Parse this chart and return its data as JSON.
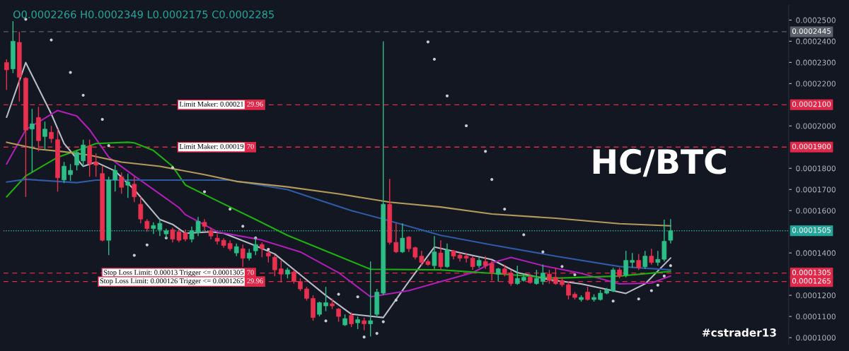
{
  "chart_data": {
    "type": "candlestick",
    "title": "HC/BTC",
    "annotations": [
      "O0.0002266 H0.0002349 L0.0002175 C0.0002285",
      "#cstrader13",
      {
        "text": "Limit Maker: 0.00021",
        "y": 0.00021
      },
      {
        "text": "29.96",
        "y": 0.00021
      },
      {
        "text": "Limit Maker: 0.00019",
        "y": 0.00019
      },
      {
        "text": "70",
        "y": 0.00019
      },
      {
        "text": "Stop Loss Limit: 0.00013 Trigger <= 0.0001305",
        "y": 0.0001305
      },
      {
        "text": "70",
        "y": 0.0001305
      },
      {
        "text": "Stop Loss Limit: 0.000126 Trigger <= 0.0001265",
        "y": 0.0001265
      },
      {
        "text": "29.96",
        "y": 0.0001265
      }
    ],
    "categories": [
      null,
      null,
      null,
      null,
      null,
      null,
      null,
      null,
      null,
      null,
      null,
      null,
      null,
      null,
      null,
      null,
      null,
      null,
      null,
      null,
      null,
      null,
      null,
      null,
      null,
      null,
      null,
      null,
      null,
      null,
      null,
      null,
      null,
      null,
      null,
      null,
      null,
      null,
      null,
      null,
      null,
      null,
      null,
      null,
      null,
      null,
      null,
      null,
      null,
      null,
      null,
      null,
      null,
      null,
      null,
      null,
      null,
      null,
      null,
      null,
      null,
      null,
      null,
      null,
      null,
      null,
      null,
      null,
      null,
      null,
      null,
      null,
      null,
      null,
      null,
      null,
      null,
      null,
      null,
      null,
      null,
      null,
      null,
      null,
      null,
      null,
      null,
      null,
      null,
      null,
      null,
      null,
      null,
      null,
      null,
      null,
      null,
      null,
      null,
      null,
      null,
      null,
      null,
      null,
      null,
      null,
      null,
      null,
      null,
      null,
      null,
      null,
      null,
      null,
      null,
      null,
      null,
      null,
      null,
      null,
      null,
      null,
      null
    ],
    "ohlc": [
      [
        0.00023,
        0.0002315,
        0.000217,
        0.0002265
      ],
      [
        0.000227,
        0.0002495,
        0.000225,
        0.00024
      ],
      [
        0.0002395,
        0.0002445,
        0.0002115,
        0.000223
      ],
      [
        0.0002225,
        0.000223,
        0.0001665,
        0.000198
      ],
      [
        0.0001985,
        0.000208,
        0.000178,
        0.000201
      ],
      [
        0.000204,
        0.000209,
        0.000188,
        0.000193
      ],
      [
        0.000195,
        0.000202,
        0.000189,
        0.0001985
      ],
      [
        0.000197,
        0.0002,
        0.000192,
        0.000194
      ],
      [
        0.0001935,
        0.0001985,
        0.000169,
        0.0001755
      ],
      [
        0.0001745,
        0.000183,
        0.000173,
        0.000181
      ],
      [
        0.000177,
        0.000182,
        0.000174,
        0.000179
      ],
      [
        0.0001815,
        0.0001885,
        0.000179,
        0.0001875
      ],
      [
        0.0001835,
        0.0001935,
        0.000181,
        0.000191
      ],
      [
        0.0001905,
        0.0001935,
        0.000176,
        0.000182
      ],
      [
        0.000183,
        0.000187,
        0.000176,
        0.0001815
      ],
      [
        0.0001775,
        0.000181,
        0.0001455,
        0.000146
      ],
      [
        0.000146,
        0.000176,
        0.000139,
        0.0001745
      ],
      [
        0.0001745,
        0.0001815,
        0.000169,
        0.000179
      ],
      [
        0.000176,
        0.000178,
        0.000168,
        0.000171
      ],
      [
        0.000172,
        0.0001775,
        0.000166,
        0.0001735
      ],
      [
        0.0001725,
        0.000176,
        0.000164,
        0.0001665
      ],
      [
        0.000163,
        0.0001665,
        0.000154,
        0.000156
      ],
      [
        0.000155,
        0.000156,
        0.00015,
        0.0001515
      ],
      [
        0.0001515,
        0.0001545,
        0.000149,
        0.000153
      ],
      [
        0.000151,
        0.000156,
        0.000148,
        0.000154
      ],
      [
        0.000149,
        0.0001515,
        0.000147,
        0.0001505
      ],
      [
        0.000151,
        0.000152,
        0.000145,
        0.0001465
      ],
      [
        0.00015,
        0.000151,
        0.000145,
        0.000146
      ],
      [
        0.0001495,
        0.000151,
        0.0001455,
        0.0001465
      ],
      [
        0.0001465,
        0.0001525,
        0.000145,
        0.0001505
      ],
      [
        0.0001495,
        0.000157,
        0.000148,
        0.000155
      ],
      [
        0.0001545,
        0.000156,
        0.0001505,
        0.0001525
      ],
      [
        0.0001505,
        0.000152,
        0.0001465,
        0.000148
      ],
      [
        0.000147,
        0.000149,
        0.000144,
        0.0001455
      ],
      [
        0.000146,
        0.000147,
        0.0001425,
        0.0001435
      ],
      [
        0.0001445,
        0.000146,
        0.000141,
        0.000142
      ],
      [
        0.00014,
        0.0001445,
        0.0001385,
        0.000143
      ],
      [
        0.000142,
        0.000144,
        0.0001335,
        0.0001375
      ],
      [
        0.0001375,
        0.000142,
        0.0001365,
        0.00014
      ],
      [
        0.000141,
        0.0001472,
        0.000139,
        0.000144
      ],
      [
        0.000144,
        0.000145,
        0.000138,
        0.000142
      ],
      [
        0.00014,
        0.000141,
        0.0001355,
        0.0001385
      ],
      [
        0.000138,
        0.000139,
        0.000129,
        0.000132
      ],
      [
        0.0001325,
        0.0001365,
        0.000126,
        0.00013
      ],
      [
        0.00013,
        0.000133,
        0.000128,
        0.000132
      ],
      [
        0.000131,
        0.000132,
        0.0001255,
        0.0001265
      ],
      [
        0.0001265,
        0.000128,
        0.000122,
        0.000123
      ],
      [
        0.000123,
        0.000124,
        0.0001175,
        0.0001185
      ],
      [
        0.0001185,
        0.00012,
        0.000108,
        0.0001095
      ],
      [
        0.000111,
        0.000117,
        0.00011,
        0.0001165
      ],
      [
        0.000115,
        0.000124,
        0.0001125,
        0.0001165
      ],
      [
        0.000116,
        0.0001185,
        0.0001135,
        0.000115
      ],
      [
        0.0001135,
        0.000114,
        0.0001075,
        0.00011
      ],
      [
        0.000106,
        0.000111,
        0.0001055,
        0.000109
      ],
      [
        0.0001105,
        0.000112,
        0.000105,
        0.0001065
      ],
      [
        0.000107,
        0.00011,
        0.000104,
        0.0001085
      ],
      [
        0.000108,
        0.0001095,
        0.0001035,
        0.0001065
      ],
      [
        0.0001065,
        0.000136,
        0.0001005,
        0.000108
      ],
      [
        0.000111,
        0.000123,
        0.0001095,
        0.0001215
      ],
      [
        0.000121,
        0.00024,
        0.00012,
        0.000163
      ],
      [
        0.000163,
        0.000175,
        0.000144,
        0.000145
      ],
      [
        0.000145,
        0.000154,
        0.00014,
        0.0001405
      ],
      [
        0.0001405,
        0.000154,
        0.00014,
        0.000147
      ],
      [
        0.0001475,
        0.000148,
        0.0001405,
        0.000142
      ],
      [
        0.0001425,
        0.000143,
        0.000137,
        0.000138
      ],
      [
        0.0001385,
        0.000141,
        0.000134,
        0.0001355
      ],
      [
        0.000136,
        0.000137,
        0.000134,
        0.0001345
      ],
      [
        0.000134,
        0.000148,
        0.0001325,
        0.0001405
      ],
      [
        0.00014,
        0.000146,
        0.000132,
        0.0001335
      ],
      [
        0.0001335,
        0.0001445,
        0.000133,
        0.0001415
      ],
      [
        0.000141,
        0.0001415,
        0.000137,
        0.0001385
      ],
      [
        0.000139,
        0.00014,
        0.000136,
        0.0001375
      ],
      [
        0.0001385,
        0.00014,
        0.0001355,
        0.0001375
      ],
      [
        0.0001375,
        0.0001385,
        0.000132,
        0.0001335
      ],
      [
        0.000134,
        0.000138,
        0.000133,
        0.0001365
      ],
      [
        0.000136,
        0.0001385,
        0.0001325,
        0.000134
      ],
      [
        0.000135,
        0.0001365,
        0.000127,
        0.0001305
      ],
      [
        0.00013,
        0.000133,
        0.0001265,
        0.0001325
      ],
      [
        0.0001325,
        0.0001345,
        0.000129,
        0.00013
      ],
      [
        0.0001305,
        0.000132,
        0.0001245,
        0.0001255
      ],
      [
        0.0001255,
        0.000134,
        0.000125,
        0.000128
      ],
      [
        0.000127,
        0.00013,
        0.0001265,
        0.0001285
      ],
      [
        0.0001285,
        0.00013,
        0.0001255,
        0.000126
      ],
      [
        0.0001255,
        0.000132,
        0.000125,
        0.000128
      ],
      [
        0.0001265,
        0.0001345,
        0.000125,
        0.0001305
      ],
      [
        0.00013,
        0.000132,
        0.0001255,
        0.000127
      ],
      [
        0.0001285,
        0.000133,
        0.000125,
        0.0001255
      ],
      [
        0.000127,
        0.0001285,
        0.000124,
        0.000125
      ],
      [
        0.000125,
        0.0001265,
        0.000118,
        0.00012
      ],
      [
        0.0001205,
        0.0001215,
        0.000118,
        0.000119
      ],
      [
        0.000118,
        0.00012,
        0.000117,
        0.000119
      ],
      [
        0.0001215,
        0.000124,
        0.0001175,
        0.000118
      ],
      [
        0.000118,
        0.0001205,
        0.000117,
        0.000119
      ],
      [
        0.000118,
        0.0001225,
        0.0001175,
        0.000121
      ],
      [
        0.000121,
        0.0001235,
        0.0001205,
        0.0001225
      ],
      [
        0.000122,
        0.000133,
        0.0001215,
        0.000132
      ],
      [
        0.000132,
        0.000133,
        0.000128,
        0.000129
      ],
      [
        0.0001295,
        0.000141,
        0.0001285,
        0.0001365
      ],
      [
        0.0001355,
        0.00014,
        0.000133,
        0.0001365
      ],
      [
        0.0001365,
        0.0001395,
        0.000132,
        0.000133
      ],
      [
        0.0001335,
        0.000141,
        0.0001325,
        0.0001385
      ],
      [
        0.0001385,
        0.000142,
        0.0001345,
        0.0001355
      ],
      [
        0.0001355,
        0.000141,
        0.000134,
        0.000137
      ],
      [
        0.000137,
        0.0001557,
        0.000136,
        0.0001455
      ],
      [
        0.000146,
        0.000156,
        0.0001445,
        0.0001505
      ],
      null,
      null,
      null,
      null,
      null,
      null,
      null,
      null,
      null,
      null,
      null,
      null,
      null,
      null,
      null,
      null,
      null,
      null
    ],
    "colors": [
      "#e8304f",
      "#2dbd86",
      "#e8304f",
      "#e8304f",
      "#2dbd86",
      "#e8304f",
      "#2dbd86",
      "#e8304f",
      "#e8304f",
      "#2dbd86",
      "#2dbd86",
      "#2dbd86",
      "#2dbd86",
      "#e8304f",
      "#e8304f",
      "#e8304f",
      "#2dbd86",
      "#2dbd86",
      "#e8304f",
      "#2dbd86",
      "#e8304f",
      "#e8304f",
      "#e8304f",
      "#2dbd86",
      "#2dbd86",
      "#2dbd86",
      "#e8304f",
      "#e8304f",
      "#e8304f",
      "#2dbd86",
      "#2dbd86",
      "#e8304f",
      "#e8304f",
      "#e8304f",
      "#e8304f",
      "#e8304f",
      "#2dbd86",
      "#e8304f",
      "#2dbd86",
      "#2dbd86",
      "#e8304f",
      "#e8304f",
      "#e8304f",
      "#e8304f",
      "#2dbd86",
      "#e8304f",
      "#e8304f",
      "#e8304f",
      "#e8304f",
      "#2dbd86",
      "#2dbd86",
      "#e8304f",
      "#e8304f",
      "#2dbd86",
      "#e8304f",
      "#2dbd86",
      "#e8304f",
      "#2dbd86",
      "#2dbd86",
      "#2dbd86",
      "#e8304f",
      "#e8304f",
      "#2dbd86",
      "#e8304f",
      "#e8304f",
      "#e8304f",
      "#e8304f",
      "#2dbd86",
      "#e8304f",
      "#2dbd86",
      "#e8304f",
      "#e8304f",
      "#e8304f",
      "#e8304f",
      "#2dbd86",
      "#e8304f",
      "#e8304f",
      "#2dbd86",
      "#e8304f",
      "#e8304f",
      "#2dbd86",
      "#2dbd86",
      "#e8304f",
      "#2dbd86",
      "#2dbd86",
      "#e8304f",
      "#e8304f",
      "#e8304f",
      "#e8304f",
      "#e8304f",
      "#2dbd86",
      "#e8304f",
      "#2dbd86",
      "#2dbd86",
      "#2dbd86",
      "#2dbd86",
      "#e8304f",
      "#2dbd86",
      "#2dbd86",
      "#e8304f",
      "#2dbd86",
      "#e8304f",
      "#2dbd86",
      "#2dbd86",
      "#2dbd86",
      null,
      null,
      null,
      null,
      null,
      null,
      null,
      null,
      null,
      null,
      null,
      null,
      null,
      null,
      null,
      null,
      null,
      null
    ],
    "series": [
      {
        "type": "line",
        "color": "#b8bcc6",
        "values": [
          0.0002041,
          null,
          null,
          0.0002299,
          null,
          null,
          null,
          0.0002057,
          null,
          0.0001917,
          null,
          0.0001845,
          0.0001809,
          null,
          0.0001829,
          null,
          null,
          0.0001787,
          null,
          null,
          0.0001699,
          null,
          null,
          null,
          0.0001558,
          null,
          0.0001535,
          null,
          0.0001493,
          null,
          null,
          null,
          0.00015,
          null,
          0.0001493,
          null,
          null,
          null,
          null,
          0.0001434,
          null,
          null,
          0.0001395,
          null,
          null,
          null,
          0.0001297,
          null,
          null,
          null,
          0.0001199,
          null,
          null,
          null,
          0.0001111,
          null,
          null,
          0.0001101,
          null,
          0.0001095,
          null,
          null,
          null,
          0.0001265,
          null,
          null,
          null,
          0.0001428,
          null,
          null,
          null,
          null,
          0.0001395,
          null,
          null,
          null,
          0.0001369,
          null,
          null,
          null,
          0.0001307,
          null,
          null,
          null,
          null,
          0.0001274,
          null,
          null,
          null,
          null,
          0.0001254,
          null,
          null,
          null,
          null,
          null,
          null,
          0.0001209,
          null,
          null,
          0.0001254,
          null,
          null,
          null,
          0.0001376,
          null,
          null,
          null,
          null,
          null,
          null,
          null,
          null,
          null,
          null,
          null,
          null,
          null,
          null,
          null,
          null,
          null,
          null
        ]
      },
      {
        "type": "line",
        "color": "#b01eb5",
        "values": [
          0.000182,
          null,
          null,
          0.0001982,
          null,
          null,
          null,
          null,
          0.0002073,
          null,
          null,
          0.0002047,
          null,
          0.0001982,
          null,
          null,
          0.0001852,
          null,
          null,
          null,
          0.0001764,
          null,
          null,
          null,
          0.0001679,
          null,
          null,
          0.0001614,
          0.0001581,
          null,
          null,
          null,
          null,
          0.00015,
          null,
          null,
          null,
          null,
          null,
          null,
          0.0001461,
          null,
          null,
          null,
          null,
          null,
          0.0001405,
          null,
          null,
          null,
          null,
          null,
          0.0001307,
          null,
          null,
          null,
          null,
          0.0001193,
          null,
          null,
          null,
          null,
          null,
          0.0001222,
          null,
          null,
          null,
          null,
          0.0001265,
          null,
          null,
          null,
          null,
          0.0001307,
          null,
          null,
          0.0001353,
          null,
          null,
          0.0001379,
          null,
          null,
          null,
          null,
          0.000134,
          null,
          null,
          null,
          null,
          null,
          0.0001304,
          null,
          null,
          null,
          null,
          null,
          0.0001254,
          null,
          null,
          null,
          null,
          0.0001258,
          null,
          null,
          0.0001291,
          null,
          null,
          null,
          null,
          null,
          null,
          null,
          null,
          null,
          null,
          null,
          null,
          null,
          null,
          null,
          null,
          null,
          null
        ]
      },
      {
        "type": "line",
        "color": "#1fae10",
        "values": [
          0.0001665,
          null,
          null,
          0.0001764,
          null,
          null,
          null,
          null,
          0.0001852,
          null,
          null,
          null,
          0.0001894,
          null,
          0.0001917,
          null,
          null,
          null,
          null,
          0.0001923,
          0.000192,
          null,
          null,
          0.0001884,
          null,
          null,
          0.0001809,
          null,
          0.0001721,
          null,
          null,
          null,
          null,
          0.0001646,
          null,
          null,
          null,
          null,
          null,
          0.0001558,
          null,
          null,
          null,
          null,
          0.0001483,
          null,
          null,
          null,
          null,
          null,
          null,
          null,
          0.0001385,
          null,
          null,
          null,
          null,
          0.0001323,
          null,
          null,
          null,
          null,
          null,
          null,
          null,
          null,
          null,
          null,
          0.000132,
          null,
          null,
          null,
          null,
          null,
          null,
          null,
          0.0001304,
          null,
          null,
          null,
          null,
          null,
          null,
          null,
          null,
          null,
          0.0001281,
          null,
          null,
          null,
          null,
          null,
          null,
          null,
          null,
          null,
          0.0001291,
          null,
          null,
          null,
          null,
          null,
          null,
          null,
          0.0001313,
          null,
          null,
          null,
          null,
          null,
          null,
          null,
          null,
          null,
          null,
          null,
          null,
          null,
          null,
          null,
          null,
          null,
          null
        ]
      },
      {
        "type": "line",
        "color": "#2e5aa6",
        "values": [
          0.0001735,
          null,
          null,
          0.0001748,
          null,
          null,
          null,
          null,
          null,
          null,
          null,
          0.0001732,
          null,
          null,
          0.0001744,
          null,
          null,
          null,
          null,
          null,
          null,
          null,
          null,
          null,
          null,
          null,
          0.0001744,
          null,
          null,
          null,
          null,
          null,
          null,
          null,
          null,
          0.0001744,
          null,
          null,
          null,
          null,
          null,
          null,
          null,
          null,
          0.0001699,
          null,
          null,
          null,
          null,
          null,
          null,
          null,
          null,
          null,
          0.00016,
          null,
          null,
          null,
          null,
          0.000156,
          null,
          null,
          null,
          null,
          null,
          null,
          null,
          null,
          0.0001483,
          null,
          null,
          null,
          null,
          null,
          null,
          null,
          0.0001438,
          null,
          null,
          null,
          null,
          null,
          null,
          null,
          null,
          null,
          0.0001385,
          null,
          null,
          null,
          null,
          null,
          null,
          null,
          null,
          null,
          0.0001336,
          null,
          null,
          null,
          null,
          null,
          null,
          null,
          0.000132,
          null,
          null,
          null,
          null,
          null,
          null,
          null,
          null,
          null,
          null,
          null,
          null,
          null,
          null,
          null,
          null,
          null,
          null
        ]
      },
      {
        "type": "line",
        "color": "#b39a5a",
        "values": [
          0.0001923,
          null,
          null,
          null,
          null,
          0.000189,
          null,
          null,
          null,
          0.0001878,
          null,
          null,
          null,
          0.0001862,
          null,
          null,
          null,
          null,
          0.0001829,
          null,
          null,
          null,
          null,
          null,
          0.0001809,
          null,
          null,
          null,
          null,
          null,
          null,
          0.000177,
          null,
          null,
          null,
          null,
          0.0001738,
          null,
          null,
          null,
          null,
          null,
          null,
          null,
          0.0001712,
          null,
          null,
          null,
          null,
          null,
          null,
          null,
          0.0001679,
          null,
          null,
          null,
          null,
          null,
          null,
          null,
          0.000164,
          null,
          null,
          null,
          null,
          null,
          null,
          null,
          0.0001617,
          null,
          null,
          null,
          null,
          null,
          null,
          null,
          0.0001584,
          null,
          null,
          null,
          null,
          null,
          null,
          null,
          null,
          null,
          0.0001564,
          null,
          null,
          null,
          null,
          null,
          null,
          null,
          null,
          null,
          0.0001538,
          null,
          null,
          null,
          null,
          null,
          null,
          null,
          0.0001528,
          null,
          null,
          null,
          null,
          null,
          null,
          null,
          null,
          null,
          null,
          null,
          null,
          null,
          null,
          null,
          null,
          null,
          null
        ]
      },
      {
        "type": "scatter",
        "color": "#c8cbd2",
        "marker": "circle",
        "values": [
          null,
          null,
          null,
          0.0002504,
          null,
          null,
          null,
          0.0002406,
          null,
          null,
          0.0002253,
          null,
          0.0002145,
          null,
          null,
          0.0002031,
          0.0001907,
          null,
          null,
          null,
          0.0001389,
          null,
          0.0001438,
          null,
          null,
          0.0001471,
          0.0001803,
          null,
          null,
          null,
          null,
          0.0001689,
          null,
          null,
          null,
          0.0001607,
          null,
          0.0001526,
          null,
          0.0001471,
          null,
          0.0001417,
          null,
          null,
          null,
          null,
          null,
          null,
          null,
          null,
          0.0001079,
          null,
          0.0001205,
          null,
          null,
          0.0001193,
          0.0001003,
          null,
          0.000102,
          0.0001075,
          null,
          0.0001177,
          null,
          null,
          null,
          null,
          0.0002397,
          0.0002315,
          null,
          0.0002142,
          null,
          null,
          0.0002001,
          null,
          null,
          0.000188,
          0.0001747,
          null,
          0.0001607,
          null,
          null,
          0.0001486,
          null,
          null,
          0.0001405,
          null,
          null,
          0.0001336,
          null,
          0.0001297,
          null,
          null,
          null,
          null,
          null,
          0.0001173,
          null,
          null,
          null,
          0.0001183,
          null,
          0.0001222,
          0.0001248,
          0.0001291,
          0.000134,
          null,
          null,
          null,
          null,
          null,
          null,
          null,
          null,
          null,
          null,
          null,
          null,
          null,
          null,
          null,
          null,
          null,
          null
        ]
      }
    ],
    "ref_lines": [
      {
        "axis": "y",
        "value": 0.0002445,
        "label": "0.0002445",
        "color": "#5d606b",
        "line_style": "dashed"
      },
      {
        "axis": "y",
        "value": 0.00021,
        "label": "0.0002100",
        "color": "#e0294a",
        "line_style": "dashed"
      },
      {
        "axis": "y",
        "value": 0.00019,
        "label": "0.0001900",
        "color": "#e0294a",
        "line_style": "dashed"
      },
      {
        "axis": "y",
        "value": 0.0001505,
        "label": "0.0001505",
        "color": "#26a69a",
        "line_style": "dotted"
      },
      {
        "axis": "y",
        "value": 0.0001305,
        "label": "0.0001305",
        "color": "#e0294a",
        "line_style": "dashed"
      },
      {
        "axis": "y",
        "value": 0.0001265,
        "label": "0.0001265",
        "color": "#e0294a",
        "line_style": "dashed"
      }
    ],
    "ylim": [
      9.7e-05,
      0.000257
    ],
    "yticks": [
      {
        "value": 0.0001,
        "label": "0.0001000"
      },
      {
        "value": 0.00011,
        "label": "0.0001100"
      },
      {
        "value": 0.00012,
        "label": "0.0001200"
      },
      {
        "value": 0.00014,
        "label": "0.0001400"
      },
      {
        "value": 0.00016,
        "label": "0.0001600"
      },
      {
        "value": 0.00017,
        "label": "0.0001700"
      },
      {
        "value": 0.00018,
        "label": "0.0001800"
      },
      {
        "value": 0.0002,
        "label": "0.0002000"
      },
      {
        "value": 0.00022,
        "label": "0.0002200"
      },
      {
        "value": 0.00023,
        "label": "0.0002300"
      },
      {
        "value": 0.00024,
        "label": "0.0002400"
      },
      {
        "value": 0.00025,
        "label": "0.0002500"
      }
    ],
    "tick_labels": "y"
  }
}
